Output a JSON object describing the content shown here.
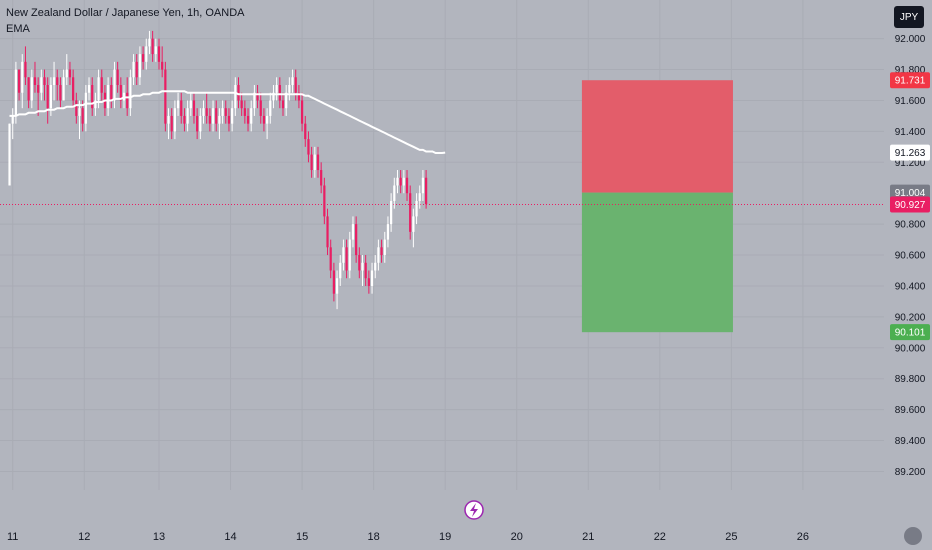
{
  "header": {
    "title": "New Zealand Dollar / Japanese Yen, 1h, OANDA",
    "indicator": "EMA",
    "currency_button": "JPY"
  },
  "colors": {
    "background": "#b2b5be",
    "up": "#ffffff",
    "down": "#e91e63",
    "ema": "#ffffff",
    "stop_zone": "#e35d6a",
    "target_zone": "#6ab36f",
    "current_price_line": "#e91e63"
  },
  "chart_data": {
    "type": "candlestick",
    "instrument": "NZD/JPY",
    "timeframe": "1h",
    "y_ticks": [
      "92.000",
      "91.800",
      "91.600",
      "91.400",
      "91.200",
      "90.800",
      "90.600",
      "90.400",
      "90.200",
      "90.000",
      "89.800",
      "89.600",
      "89.400",
      "89.200"
    ],
    "ylim": [
      89.08,
      92.25
    ],
    "x_ticks": [
      "11",
      "12",
      "13",
      "14",
      "15",
      "18",
      "19",
      "20",
      "21",
      "22",
      "25",
      "26"
    ],
    "x_tick_index": [
      1,
      23.5,
      47,
      69.5,
      92,
      114.5,
      137,
      159.5,
      182,
      204.5,
      227,
      249.5
    ],
    "xlim": [
      -3,
      275
    ],
    "price_labels": [
      {
        "value": "91.731",
        "bg": "#f23645",
        "fg": "#ffffff"
      },
      {
        "value": "91.263",
        "bg": "#ffffff",
        "fg": "#131722"
      },
      {
        "value": "91.004",
        "bg": "#787b86",
        "fg": "#ffffff"
      },
      {
        "value": "90.927",
        "bg": "#e91e63",
        "fg": "#ffffff"
      },
      {
        "value": "90.101",
        "bg": "#4caf50",
        "fg": "#ffffff"
      }
    ],
    "current_price": 90.927,
    "position": {
      "entry": 91.004,
      "stop": 91.731,
      "target": 90.101,
      "x_start": 180,
      "x_end": 227.5
    },
    "ohlc": [
      [
        91.05,
        91.45,
        91.05,
        91.45
      ],
      [
        91.45,
        91.55,
        91.35,
        91.5
      ],
      [
        91.5,
        91.85,
        91.45,
        91.8
      ],
      [
        91.8,
        91.8,
        91.6,
        91.65
      ],
      [
        91.65,
        91.9,
        91.55,
        91.85
      ],
      [
        91.85,
        91.95,
        91.7,
        91.75
      ],
      [
        91.75,
        91.75,
        91.55,
        91.6
      ],
      [
        91.6,
        91.8,
        91.55,
        91.75
      ],
      [
        91.75,
        91.85,
        91.65,
        91.7
      ],
      [
        91.7,
        91.75,
        91.5,
        91.65
      ],
      [
        91.65,
        91.8,
        91.6,
        91.75
      ],
      [
        91.75,
        91.8,
        91.6,
        91.7
      ],
      [
        91.7,
        91.75,
        91.45,
        91.55
      ],
      [
        91.55,
        91.75,
        91.5,
        91.7
      ],
      [
        91.7,
        91.85,
        91.6,
        91.75
      ],
      [
        91.75,
        91.8,
        91.6,
        91.7
      ],
      [
        91.7,
        91.75,
        91.55,
        91.6
      ],
      [
        91.6,
        91.8,
        91.6,
        91.75
      ],
      [
        91.75,
        91.9,
        91.7,
        91.8
      ],
      [
        91.8,
        91.85,
        91.7,
        91.75
      ],
      [
        91.75,
        91.8,
        91.55,
        91.6
      ],
      [
        91.6,
        91.65,
        91.45,
        91.5
      ],
      [
        91.5,
        91.6,
        91.35,
        91.55
      ],
      [
        91.55,
        91.6,
        91.4,
        91.45
      ],
      [
        91.45,
        91.7,
        91.4,
        91.65
      ],
      [
        91.65,
        91.75,
        91.6,
        91.7
      ],
      [
        91.7,
        91.75,
        91.5,
        91.55
      ],
      [
        91.55,
        91.65,
        91.5,
        91.6
      ],
      [
        91.6,
        91.8,
        91.55,
        91.75
      ],
      [
        91.75,
        91.8,
        91.6,
        91.65
      ],
      [
        91.65,
        91.7,
        91.5,
        91.55
      ],
      [
        91.55,
        91.75,
        91.5,
        91.7
      ],
      [
        91.7,
        91.75,
        91.55,
        91.6
      ],
      [
        91.6,
        91.85,
        91.55,
        91.8
      ],
      [
        91.8,
        91.85,
        91.65,
        91.7
      ],
      [
        91.7,
        91.75,
        91.55,
        91.6
      ],
      [
        91.6,
        91.7,
        91.55,
        91.65
      ],
      [
        91.65,
        91.75,
        91.5,
        91.55
      ],
      [
        91.55,
        91.8,
        91.5,
        91.75
      ],
      [
        91.75,
        91.9,
        91.7,
        91.85
      ],
      [
        91.85,
        91.9,
        91.7,
        91.75
      ],
      [
        91.75,
        91.95,
        91.7,
        91.9
      ],
      [
        91.9,
        91.95,
        91.8,
        91.85
      ],
      [
        91.85,
        92.0,
        91.8,
        91.95
      ],
      [
        91.95,
        92.05,
        91.9,
        92.0
      ],
      [
        92.0,
        92.05,
        91.85,
        91.9
      ],
      [
        91.9,
        92.0,
        91.85,
        91.95
      ],
      [
        91.95,
        92.0,
        91.8,
        91.85
      ],
      [
        91.85,
        91.95,
        91.75,
        91.8
      ],
      [
        91.8,
        91.85,
        91.4,
        91.45
      ],
      [
        91.45,
        91.55,
        91.35,
        91.5
      ],
      [
        91.5,
        91.55,
        91.35,
        91.4
      ],
      [
        91.4,
        91.6,
        91.35,
        91.55
      ],
      [
        91.55,
        91.65,
        91.5,
        91.6
      ],
      [
        91.6,
        91.65,
        91.45,
        91.5
      ],
      [
        91.5,
        91.55,
        91.4,
        91.45
      ],
      [
        91.45,
        91.6,
        91.4,
        91.55
      ],
      [
        91.55,
        91.65,
        91.5,
        91.6
      ],
      [
        91.6,
        91.65,
        91.45,
        91.5
      ],
      [
        91.5,
        91.55,
        91.35,
        91.4
      ],
      [
        91.4,
        91.55,
        91.35,
        91.5
      ],
      [
        91.5,
        91.6,
        91.45,
        91.55
      ],
      [
        91.55,
        91.65,
        91.45,
        91.5
      ],
      [
        91.5,
        91.55,
        91.4,
        91.45
      ],
      [
        91.45,
        91.6,
        91.4,
        91.55
      ],
      [
        91.55,
        91.6,
        91.4,
        91.45
      ],
      [
        91.45,
        91.55,
        91.35,
        91.5
      ],
      [
        91.5,
        91.6,
        91.45,
        91.55
      ],
      [
        91.55,
        91.6,
        91.45,
        91.5
      ],
      [
        91.5,
        91.55,
        91.4,
        91.45
      ],
      [
        91.45,
        91.6,
        91.4,
        91.55
      ],
      [
        91.55,
        91.75,
        91.5,
        91.7
      ],
      [
        91.7,
        91.75,
        91.55,
        91.6
      ],
      [
        91.6,
        91.65,
        91.5,
        91.55
      ],
      [
        91.55,
        91.6,
        91.45,
        91.5
      ],
      [
        91.5,
        91.55,
        91.4,
        91.45
      ],
      [
        91.45,
        91.6,
        91.4,
        91.55
      ],
      [
        91.55,
        91.7,
        91.5,
        91.65
      ],
      [
        91.65,
        91.7,
        91.55,
        91.6
      ],
      [
        91.6,
        91.65,
        91.45,
        91.5
      ],
      [
        91.5,
        91.55,
        91.4,
        91.45
      ],
      [
        91.45,
        91.55,
        91.35,
        91.5
      ],
      [
        91.5,
        91.65,
        91.45,
        91.6
      ],
      [
        91.6,
        91.7,
        91.55,
        91.65
      ],
      [
        91.65,
        91.75,
        91.6,
        91.7
      ],
      [
        91.7,
        91.75,
        91.55,
        91.6
      ],
      [
        91.6,
        91.65,
        91.5,
        91.55
      ],
      [
        91.55,
        91.7,
        91.5,
        91.65
      ],
      [
        91.65,
        91.75,
        91.6,
        91.7
      ],
      [
        91.7,
        91.8,
        91.65,
        91.75
      ],
      [
        91.75,
        91.8,
        91.6,
        91.65
      ],
      [
        91.65,
        91.7,
        91.55,
        91.6
      ],
      [
        91.6,
        91.65,
        91.4,
        91.45
      ],
      [
        91.45,
        91.5,
        91.3,
        91.35
      ],
      [
        91.35,
        91.4,
        91.2,
        91.25
      ],
      [
        91.25,
        91.3,
        91.1,
        91.15
      ],
      [
        91.15,
        91.3,
        91.1,
        91.25
      ],
      [
        91.25,
        91.3,
        91.1,
        91.15
      ],
      [
        91.15,
        91.2,
        91.0,
        91.05
      ],
      [
        91.05,
        91.1,
        90.8,
        90.85
      ],
      [
        90.85,
        90.9,
        90.6,
        90.65
      ],
      [
        90.65,
        90.7,
        90.45,
        90.5
      ],
      [
        90.5,
        90.55,
        90.3,
        90.35
      ],
      [
        90.35,
        90.5,
        90.25,
        90.45
      ],
      [
        90.45,
        90.6,
        90.4,
        90.55
      ],
      [
        90.55,
        90.7,
        90.5,
        90.65
      ],
      [
        90.65,
        90.7,
        90.45,
        90.5
      ],
      [
        90.5,
        90.75,
        90.45,
        90.7
      ],
      [
        90.7,
        90.85,
        90.65,
        90.8
      ],
      [
        90.8,
        90.85,
        90.55,
        90.6
      ],
      [
        90.6,
        90.65,
        90.45,
        90.5
      ],
      [
        90.5,
        90.6,
        90.4,
        90.55
      ],
      [
        90.55,
        90.6,
        90.4,
        90.45
      ],
      [
        90.45,
        90.5,
        90.35,
        90.4
      ],
      [
        90.4,
        90.55,
        90.35,
        90.5
      ],
      [
        90.5,
        90.6,
        90.45,
        90.55
      ],
      [
        90.55,
        90.7,
        90.5,
        90.65
      ],
      [
        90.65,
        90.7,
        90.55,
        90.6
      ],
      [
        90.6,
        90.75,
        90.55,
        90.7
      ],
      [
        90.7,
        90.85,
        90.65,
        90.8
      ],
      [
        90.8,
        91.0,
        90.75,
        90.95
      ],
      [
        90.95,
        91.1,
        90.9,
        91.05
      ],
      [
        91.05,
        91.15,
        91.0,
        91.1
      ],
      [
        91.1,
        91.15,
        91.0,
        91.05
      ],
      [
        91.05,
        91.15,
        91.0,
        91.1
      ],
      [
        91.1,
        91.15,
        90.95,
        91.0
      ],
      [
        91.0,
        91.05,
        90.7,
        90.75
      ],
      [
        90.75,
        90.9,
        90.65,
        90.85
      ],
      [
        90.85,
        91.0,
        90.8,
        90.95
      ],
      [
        90.95,
        91.05,
        90.9,
        91.0
      ],
      [
        91.0,
        91.15,
        90.95,
        91.1
      ],
      [
        91.1,
        91.15,
        90.9,
        90.93
      ]
    ],
    "ema": [
      91.5,
      91.5,
      91.5,
      91.51,
      91.51,
      91.51,
      91.52,
      91.52,
      91.52,
      91.53,
      91.53,
      91.53,
      91.54,
      91.54,
      91.54,
      91.55,
      91.55,
      91.55,
      91.56,
      91.56,
      91.56,
      91.57,
      91.57,
      91.57,
      91.58,
      91.58,
      91.58,
      91.59,
      91.59,
      91.59,
      91.6,
      91.6,
      91.6,
      91.61,
      91.61,
      91.61,
      91.62,
      91.62,
      91.62,
      91.63,
      91.63,
      91.63,
      91.64,
      91.64,
      91.64,
      91.65,
      91.65,
      91.65,
      91.66,
      91.66,
      91.66,
      91.66,
      91.66,
      91.66,
      91.66,
      91.66,
      91.65,
      91.65,
      91.65,
      91.65,
      91.65,
      91.65,
      91.65,
      91.65,
      91.65,
      91.65,
      91.65,
      91.65,
      91.65,
      91.65,
      91.65,
      91.65,
      91.64,
      91.64,
      91.64,
      91.64,
      91.64,
      91.64,
      91.64,
      91.64,
      91.64,
      91.64,
      91.64,
      91.64,
      91.64,
      91.64,
      91.64,
      91.64,
      91.64,
      91.64,
      91.64,
      91.64,
      91.64,
      91.63,
      91.63,
      91.62,
      91.61,
      91.6,
      91.59,
      91.58,
      91.57,
      91.56,
      91.55,
      91.54,
      91.53,
      91.52,
      91.51,
      91.5,
      91.49,
      91.48,
      91.47,
      91.46,
      91.45,
      91.44,
      91.43,
      91.42,
      91.41,
      91.4,
      91.39,
      91.38,
      91.37,
      91.36,
      91.35,
      91.34,
      91.33,
      91.32,
      91.31,
      91.3,
      91.29,
      91.28,
      91.28,
      91.27,
      91.27,
      91.27,
      91.26,
      91.26,
      91.26,
      91.263
    ]
  }
}
